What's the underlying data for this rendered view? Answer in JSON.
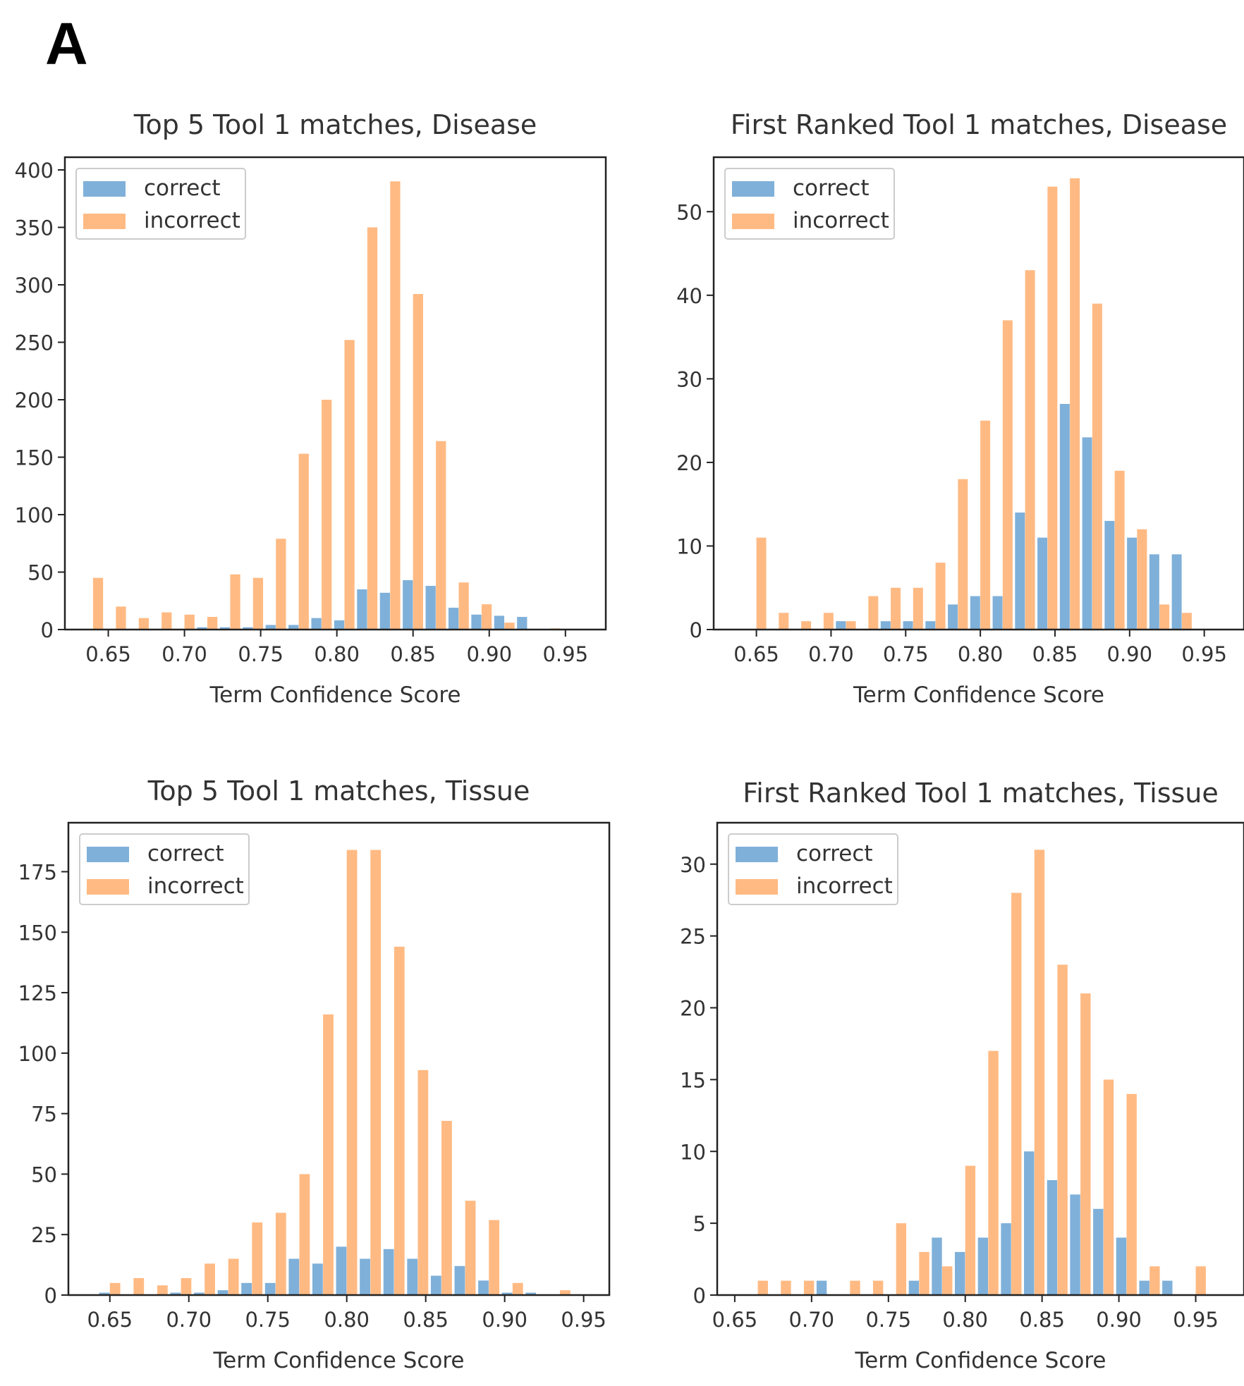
{
  "figure": {
    "panel_label": "A"
  },
  "colors": {
    "correct": "#7fb0d9",
    "incorrect": "#ffba83",
    "axis": "#222222",
    "text": "#333333"
  },
  "chart_data": [
    {
      "type": "bar",
      "title": "Top 5 Tool 1 matches, Disease",
      "xlabel": "Term Confidence Score",
      "ylabel": "",
      "xlim": [
        0.628,
        0.97
      ],
      "ylim": [
        0,
        400
      ],
      "xticks": [
        "0.65",
        "0.70",
        "0.75",
        "0.80",
        "0.85",
        "0.90",
        "0.95"
      ],
      "yticks": [
        "0",
        "50",
        "100",
        "150",
        "200",
        "250",
        "300",
        "350",
        "400"
      ],
      "legend": {
        "position": "top-left",
        "entries": [
          "correct",
          "incorrect"
        ]
      },
      "bin_width": 0.015,
      "series": [
        {
          "name": "correct",
          "x": [
            0.64,
            0.655,
            0.67,
            0.685,
            0.7,
            0.715,
            0.73,
            0.745,
            0.76,
            0.775,
            0.79,
            0.805,
            0.82,
            0.835,
            0.85,
            0.865,
            0.88,
            0.895,
            0.91,
            0.925,
            0.94
          ],
          "values": [
            0,
            0,
            0,
            0,
            0,
            2,
            2,
            2,
            4,
            4,
            10,
            8,
            35,
            32,
            43,
            38,
            19,
            13,
            12,
            11,
            0
          ]
        },
        {
          "name": "incorrect",
          "x": [
            0.64,
            0.655,
            0.67,
            0.685,
            0.7,
            0.715,
            0.73,
            0.745,
            0.76,
            0.775,
            0.79,
            0.805,
            0.82,
            0.835,
            0.85,
            0.865,
            0.88,
            0.895,
            0.91,
            0.925,
            0.94
          ],
          "values": [
            45,
            20,
            10,
            15,
            13,
            11,
            48,
            45,
            79,
            153,
            200,
            252,
            350,
            390,
            292,
            164,
            41,
            22,
            6,
            0,
            1
          ]
        }
      ]
    },
    {
      "type": "bar",
      "title": "First Ranked Tool 1 matches, Disease",
      "xlabel": "Term Confidence Score",
      "ylabel": "",
      "xlim": [
        0.628,
        0.97
      ],
      "ylim": [
        0,
        55
      ],
      "xticks": [
        "0.65",
        "0.70",
        "0.75",
        "0.80",
        "0.85",
        "0.90",
        "0.95"
      ],
      "yticks": [
        "0",
        "10",
        "20",
        "30",
        "40",
        "50"
      ],
      "legend": {
        "position": "top-left",
        "entries": [
          "correct",
          "incorrect"
        ]
      },
      "bin_width": 0.015,
      "series": [
        {
          "name": "correct",
          "x": [
            0.65,
            0.665,
            0.68,
            0.695,
            0.71,
            0.725,
            0.74,
            0.755,
            0.77,
            0.785,
            0.8,
            0.815,
            0.83,
            0.845,
            0.86,
            0.875,
            0.89,
            0.905,
            0.92,
            0.935
          ],
          "values": [
            0,
            0,
            0,
            0,
            1,
            0,
            1,
            1,
            1,
            3,
            4,
            4,
            14,
            11,
            27,
            23,
            13,
            11,
            9,
            9
          ]
        },
        {
          "name": "incorrect",
          "x": [
            0.65,
            0.665,
            0.68,
            0.695,
            0.71,
            0.725,
            0.74,
            0.755,
            0.77,
            0.785,
            0.8,
            0.815,
            0.83,
            0.845,
            0.86,
            0.875,
            0.89,
            0.905,
            0.92,
            0.935
          ],
          "values": [
            11,
            2,
            1,
            2,
            1,
            4,
            5,
            5,
            8,
            18,
            25,
            37,
            43,
            53,
            54,
            39,
            19,
            12,
            3,
            2
          ]
        }
      ]
    },
    {
      "type": "bar",
      "title": "Top 5 Tool 1 matches, Tissue",
      "xlabel": "Term Confidence Score",
      "ylabel": "",
      "xlim": [
        0.63,
        0.96
      ],
      "ylim": [
        0,
        190
      ],
      "xticks": [
        "0.65",
        "0.70",
        "0.75",
        "0.80",
        "0.85",
        "0.90",
        "0.95"
      ],
      "yticks": [
        "0",
        "25",
        "50",
        "75",
        "100",
        "125",
        "150",
        "175"
      ],
      "legend": {
        "position": "top-left",
        "entries": [
          "correct",
          "incorrect"
        ]
      },
      "bin_width": 0.015,
      "series": [
        {
          "name": "correct",
          "x": [
            0.65,
            0.665,
            0.68,
            0.695,
            0.71,
            0.725,
            0.74,
            0.755,
            0.77,
            0.785,
            0.8,
            0.815,
            0.83,
            0.845,
            0.86,
            0.875,
            0.89,
            0.905,
            0.92,
            0.935
          ],
          "values": [
            1,
            0,
            0,
            1,
            1,
            2,
            5,
            5,
            15,
            13,
            20,
            15,
            19,
            15,
            8,
            12,
            6,
            1,
            1,
            0
          ]
        },
        {
          "name": "incorrect",
          "x": [
            0.65,
            0.665,
            0.68,
            0.695,
            0.71,
            0.725,
            0.74,
            0.755,
            0.77,
            0.785,
            0.8,
            0.815,
            0.83,
            0.845,
            0.86,
            0.875,
            0.89,
            0.905,
            0.92,
            0.935
          ],
          "values": [
            5,
            7,
            4,
            7,
            13,
            15,
            30,
            34,
            50,
            116,
            184,
            184,
            144,
            93,
            72,
            39,
            31,
            5,
            0,
            2
          ]
        }
      ]
    },
    {
      "type": "bar",
      "title": "First Ranked Tool 1 matches, Tissue",
      "xlabel": "Term Confidence Score",
      "ylabel": "",
      "xlim": [
        0.645,
        0.975
      ],
      "ylim": [
        0,
        32
      ],
      "xticks": [
        "0.65",
        "0.70",
        "0.75",
        "0.80",
        "0.85",
        "0.90",
        "0.95"
      ],
      "yticks": [
        "0",
        "5",
        "10",
        "15",
        "20",
        "25",
        "30"
      ],
      "legend": {
        "position": "top-left",
        "entries": [
          "correct",
          "incorrect"
        ]
      },
      "bin_width": 0.015,
      "series": [
        {
          "name": "correct",
          "x": [
            0.665,
            0.68,
            0.695,
            0.71,
            0.725,
            0.74,
            0.755,
            0.77,
            0.785,
            0.8,
            0.815,
            0.83,
            0.845,
            0.86,
            0.875,
            0.89,
            0.905,
            0.92,
            0.935,
            0.95,
            0.965
          ],
          "values": [
            0,
            0,
            0,
            1,
            0,
            0,
            0,
            1,
            4,
            3,
            4,
            5,
            10,
            8,
            7,
            6,
            4,
            1,
            1,
            0,
            0
          ]
        },
        {
          "name": "incorrect",
          "x": [
            0.665,
            0.68,
            0.695,
            0.71,
            0.725,
            0.74,
            0.755,
            0.77,
            0.785,
            0.8,
            0.815,
            0.83,
            0.845,
            0.86,
            0.875,
            0.89,
            0.905,
            0.92,
            0.935,
            0.95,
            0.965
          ],
          "values": [
            1,
            1,
            1,
            0,
            1,
            1,
            5,
            3,
            2,
            9,
            17,
            28,
            31,
            23,
            21,
            15,
            14,
            2,
            0,
            2,
            0
          ]
        }
      ]
    }
  ]
}
